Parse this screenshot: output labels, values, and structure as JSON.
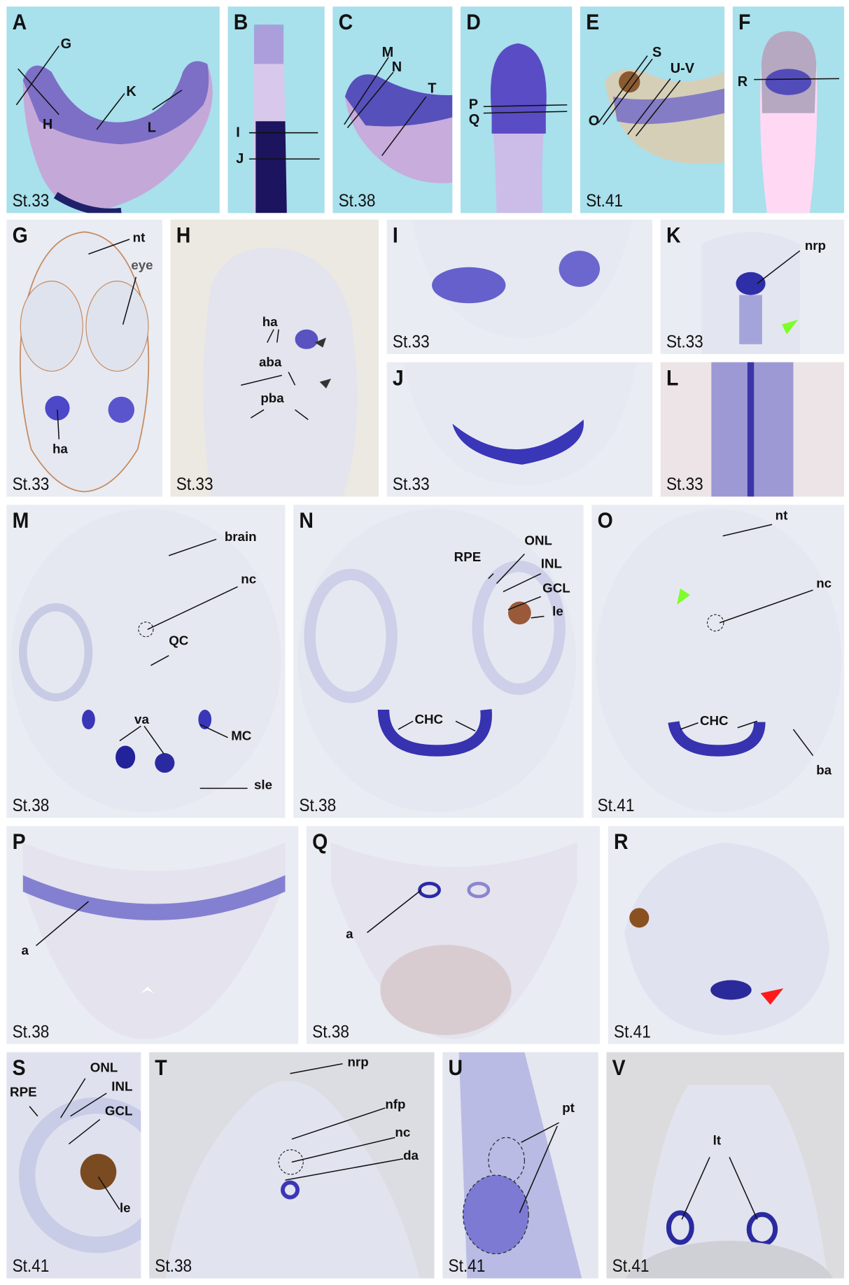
{
  "colors": {
    "whole_mount_bg": "#a8e0ec",
    "section_bg": "#e9ecf2",
    "stain": "#3a3ac0",
    "green_arrow": "#7cff2a",
    "red_arrow": "#ff1a1a"
  },
  "panels": [
    {
      "id": "A",
      "stage": "St.33",
      "labels": [
        "G",
        "H",
        "K",
        "L"
      ]
    },
    {
      "id": "B",
      "stage": "",
      "labels": [
        "I",
        "J"
      ]
    },
    {
      "id": "C",
      "stage": "St.38",
      "labels": [
        "M",
        "N",
        "T"
      ]
    },
    {
      "id": "D",
      "stage": "",
      "labels": [
        "P",
        "Q"
      ]
    },
    {
      "id": "E",
      "stage": "St.41",
      "labels": [
        "S",
        "U-V",
        "O"
      ]
    },
    {
      "id": "F",
      "stage": "",
      "labels": [
        "R"
      ]
    },
    {
      "id": "G",
      "stage": "St.33",
      "labels": [
        "nt",
        "eye",
        "ha"
      ]
    },
    {
      "id": "H",
      "stage": "St.33",
      "labels": [
        "ha",
        "aba",
        "pba"
      ]
    },
    {
      "id": "I",
      "stage": "St.33",
      "labels": []
    },
    {
      "id": "J",
      "stage": "St.33",
      "labels": []
    },
    {
      "id": "K",
      "stage": "St.33",
      "labels": [
        "nrp"
      ]
    },
    {
      "id": "L",
      "stage": "St.33",
      "labels": []
    },
    {
      "id": "M",
      "stage": "St.38",
      "labels": [
        "brain",
        "nc",
        "QC",
        "va",
        "MC",
        "sle"
      ]
    },
    {
      "id": "N",
      "stage": "St.38",
      "labels": [
        "ONL",
        "RPE",
        "INL",
        "GCL",
        "le",
        "CHC"
      ]
    },
    {
      "id": "O",
      "stage": "St.41",
      "labels": [
        "nt",
        "nc",
        "CHC",
        "ba"
      ]
    },
    {
      "id": "P",
      "stage": "St.38",
      "labels": [
        "a"
      ]
    },
    {
      "id": "Q",
      "stage": "St.38",
      "labels": [
        "a"
      ]
    },
    {
      "id": "R",
      "stage": "St.41",
      "labels": []
    },
    {
      "id": "S",
      "stage": "St.41",
      "labels": [
        "ONL",
        "RPE",
        "INL",
        "GCL",
        "le"
      ]
    },
    {
      "id": "T",
      "stage": "St.38",
      "labels": [
        "nrp",
        "nfp",
        "nc",
        "da"
      ]
    },
    {
      "id": "U",
      "stage": "St.41",
      "labels": [
        "pt"
      ]
    },
    {
      "id": "V",
      "stage": "St.41",
      "labels": [
        "lt"
      ]
    }
  ]
}
